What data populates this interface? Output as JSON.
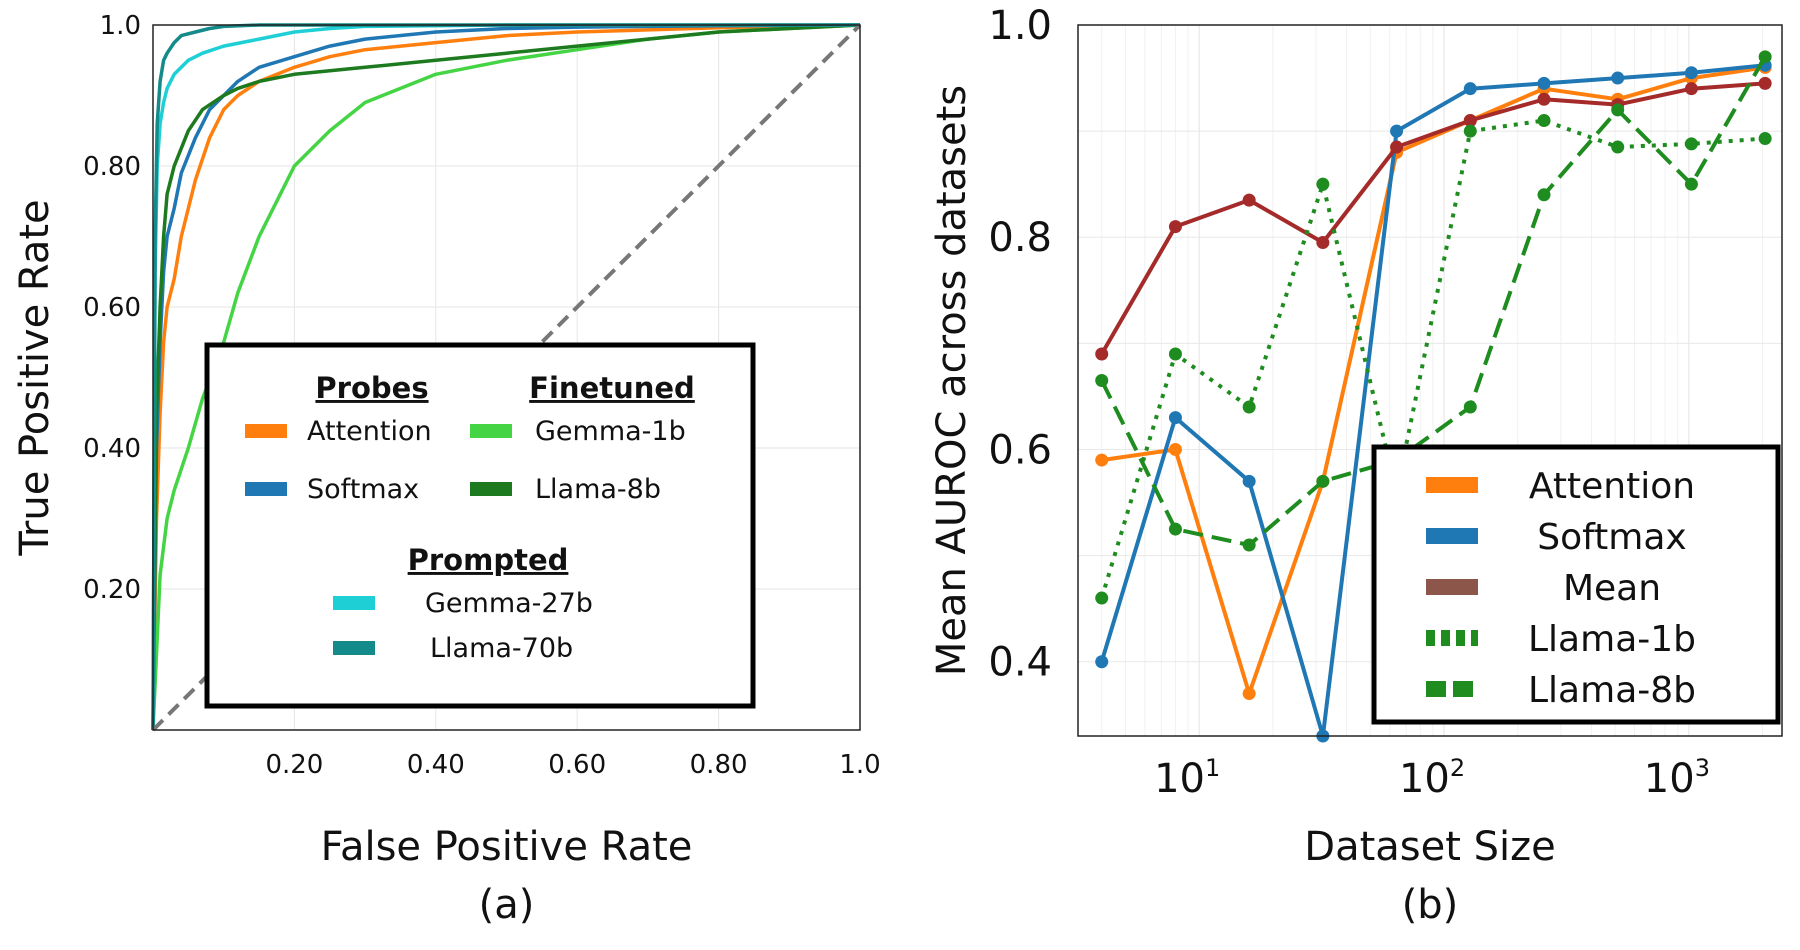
{
  "chart_data": [
    {
      "type": "line",
      "panel_label": "(a)",
      "xlabel": "False Positive Rate",
      "ylabel": "True Positive Rate",
      "xlim": [
        0,
        1.0
      ],
      "ylim": [
        0,
        1.0
      ],
      "x_ticks": [
        {
          "value": 0.2,
          "label": "0.20"
        },
        {
          "value": 0.4,
          "label": "0.40"
        },
        {
          "value": 0.6,
          "label": "0.60"
        },
        {
          "value": 0.8,
          "label": "0.80"
        },
        {
          "value": 1.0,
          "label": "1.0"
        }
      ],
      "y_ticks": [
        {
          "value": 0.2,
          "label": "0.20"
        },
        {
          "value": 0.4,
          "label": "0.40"
        },
        {
          "value": 0.6,
          "label": "0.60"
        },
        {
          "value": 0.8,
          "label": "0.80"
        },
        {
          "value": 1.0,
          "label": "1.0"
        }
      ],
      "grid": true,
      "legend": {
        "placement": "lower-right",
        "groups": [
          {
            "heading": "Probes",
            "entries": [
              "Attention",
              "Softmax"
            ]
          },
          {
            "heading": "Finetuned",
            "entries": [
              "Gemma-1b",
              "Llama-8b"
            ]
          },
          {
            "heading": "Prompted",
            "entries": [
              "Gemma-27b",
              "Llama-70b"
            ]
          }
        ]
      },
      "series": [
        {
          "name": "Attention",
          "color": "#ff7f0e",
          "style": "solid",
          "x": [
            0,
            0.005,
            0.01,
            0.015,
            0.02,
            0.03,
            0.04,
            0.06,
            0.08,
            0.1,
            0.12,
            0.15,
            0.2,
            0.25,
            0.3,
            0.4,
            0.5,
            0.6,
            0.7,
            0.8,
            0.9,
            1.0
          ],
          "y": [
            0,
            0.3,
            0.45,
            0.55,
            0.6,
            0.64,
            0.7,
            0.78,
            0.84,
            0.88,
            0.9,
            0.92,
            0.94,
            0.955,
            0.965,
            0.975,
            0.985,
            0.99,
            0.993,
            0.996,
            0.998,
            1.0
          ]
        },
        {
          "name": "Softmax",
          "color": "#1f77b4",
          "style": "solid",
          "x": [
            0,
            0.005,
            0.01,
            0.015,
            0.02,
            0.03,
            0.04,
            0.06,
            0.08,
            0.1,
            0.12,
            0.15,
            0.2,
            0.25,
            0.3,
            0.4,
            0.5,
            0.6,
            0.8,
            1.0
          ],
          "y": [
            0,
            0.4,
            0.55,
            0.65,
            0.7,
            0.74,
            0.79,
            0.84,
            0.88,
            0.9,
            0.92,
            0.94,
            0.955,
            0.97,
            0.98,
            0.99,
            0.995,
            0.997,
            0.999,
            1.0
          ]
        },
        {
          "name": "Gemma-1b",
          "color": "#44d444",
          "style": "solid",
          "x": [
            0,
            0.01,
            0.02,
            0.03,
            0.05,
            0.07,
            0.1,
            0.12,
            0.15,
            0.18,
            0.2,
            0.25,
            0.3,
            0.35,
            0.4,
            0.5,
            0.6,
            0.7,
            0.8,
            0.9,
            1.0
          ],
          "y": [
            0,
            0.22,
            0.3,
            0.34,
            0.4,
            0.47,
            0.55,
            0.62,
            0.7,
            0.76,
            0.8,
            0.85,
            0.89,
            0.91,
            0.93,
            0.95,
            0.965,
            0.98,
            0.99,
            0.995,
            1.0
          ]
        },
        {
          "name": "Llama-8b",
          "color": "#1e7a1e",
          "style": "solid",
          "x": [
            0,
            0.005,
            0.01,
            0.015,
            0.02,
            0.03,
            0.05,
            0.07,
            0.1,
            0.12,
            0.15,
            0.2,
            0.25,
            0.3,
            0.4,
            0.5,
            0.6,
            0.7,
            0.8,
            0.9,
            1.0
          ],
          "y": [
            0,
            0.45,
            0.6,
            0.7,
            0.76,
            0.8,
            0.85,
            0.88,
            0.9,
            0.91,
            0.92,
            0.93,
            0.935,
            0.94,
            0.95,
            0.96,
            0.97,
            0.98,
            0.99,
            0.995,
            1.0
          ]
        },
        {
          "name": "Gemma-27b",
          "color": "#1fcfd6",
          "style": "solid",
          "x": [
            0,
            0.003,
            0.006,
            0.01,
            0.015,
            0.02,
            0.03,
            0.05,
            0.07,
            0.1,
            0.15,
            0.2,
            0.25,
            0.3,
            0.5,
            1.0
          ],
          "y": [
            0,
            0.65,
            0.8,
            0.86,
            0.89,
            0.91,
            0.93,
            0.95,
            0.96,
            0.97,
            0.98,
            0.99,
            0.995,
            0.998,
            1.0,
            1.0
          ]
        },
        {
          "name": "Llama-70b",
          "color": "#148a8a",
          "style": "solid",
          "x": [
            0,
            0.003,
            0.006,
            0.01,
            0.015,
            0.02,
            0.03,
            0.04,
            0.06,
            0.08,
            0.1,
            0.15,
            0.2,
            0.3,
            0.5,
            1.0
          ],
          "y": [
            0,
            0.7,
            0.86,
            0.92,
            0.95,
            0.96,
            0.975,
            0.985,
            0.99,
            0.995,
            0.998,
            1.0,
            1.0,
            1.0,
            1.0,
            1.0
          ]
        },
        {
          "name": "chance",
          "color": "#777777",
          "style": "dashed",
          "x": [
            0,
            1.0
          ],
          "y": [
            0,
            1.0
          ]
        }
      ]
    },
    {
      "type": "line",
      "panel_label": "(b)",
      "xlabel": "Dataset Size",
      "ylabel": "Mean AUROC across datasets",
      "xscale": "log",
      "xlim": [
        3.2,
        2400
      ],
      "ylim": [
        0.33,
        1.0
      ],
      "x_ticks": [
        {
          "value": 10,
          "base": "10",
          "exp": "1"
        },
        {
          "value": 100,
          "base": "10",
          "exp": "2"
        },
        {
          "value": 1000,
          "base": "10",
          "exp": "3"
        }
      ],
      "y_ticks": [
        {
          "value": 0.4,
          "label": "0.4"
        },
        {
          "value": 0.6,
          "label": "0.6"
        },
        {
          "value": 0.8,
          "label": "0.8"
        },
        {
          "value": 1.0,
          "label": "1.0"
        }
      ],
      "grid": true,
      "legend": {
        "placement": "lower-right",
        "entries": [
          "Attention",
          "Softmax",
          "Mean",
          "Llama-1b",
          "Llama-8b"
        ]
      },
      "x": [
        4,
        8,
        16,
        32,
        64,
        128,
        256,
        512,
        1024,
        2048
      ],
      "series": [
        {
          "name": "Attention",
          "color": "#ff7f0e",
          "style": "solid",
          "legend_color": "#ff7f0e",
          "values": [
            0.59,
            0.6,
            0.37,
            0.57,
            0.88,
            0.91,
            0.94,
            0.93,
            0.95,
            0.96
          ]
        },
        {
          "name": "Softmax",
          "color": "#1f77b4",
          "style": "solid",
          "legend_color": "#1f77b4",
          "values": [
            0.4,
            0.63,
            0.57,
            0.33,
            0.9,
            0.94,
            0.945,
            0.95,
            0.955,
            0.962
          ]
        },
        {
          "name": "Mean",
          "color": "#a52a2a",
          "style": "solid",
          "legend_color": "#8c564b",
          "values": [
            0.69,
            0.81,
            0.835,
            0.795,
            0.885,
            0.91,
            0.93,
            0.925,
            0.94,
            0.945
          ]
        },
        {
          "name": "Llama-1b",
          "color": "#1e8c1e",
          "style": "dotted",
          "legend_color": "#1e8c1e",
          "values": [
            0.46,
            0.69,
            0.64,
            0.85,
            0.56,
            0.9,
            0.91,
            0.885,
            0.888,
            0.893
          ]
        },
        {
          "name": "Llama-8b",
          "color": "#1e8c1e",
          "style": "dashed",
          "legend_color": "#1e8c1e",
          "values": [
            0.665,
            0.525,
            0.51,
            0.57,
            0.59,
            0.64,
            0.84,
            0.92,
            0.85,
            0.97
          ]
        }
      ]
    }
  ]
}
